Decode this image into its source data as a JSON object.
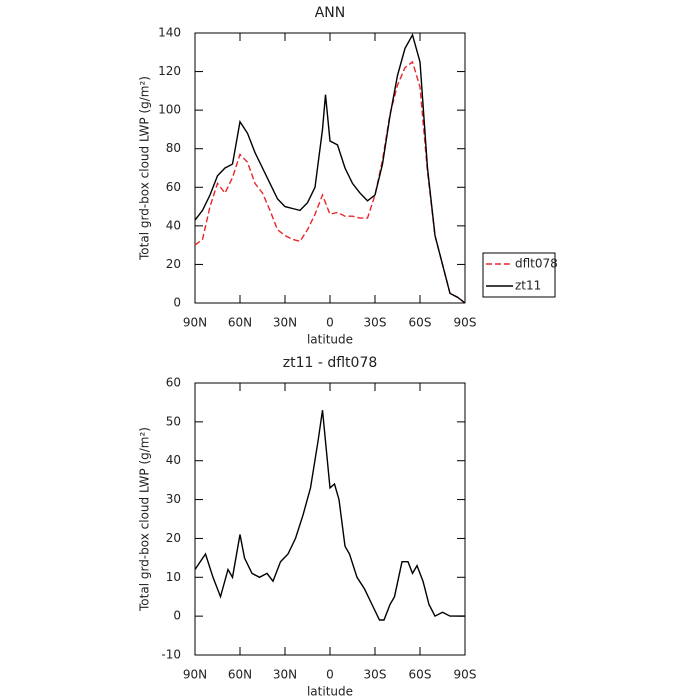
{
  "chart_data": [
    {
      "type": "line",
      "title": "ANN",
      "xlabel": "latitude",
      "ylabel": "Total grd-box cloud LWP (g/m²)",
      "x": [
        90,
        85,
        80,
        75,
        70,
        65,
        60,
        55,
        50,
        45,
        40,
        35,
        30,
        25,
        20,
        15,
        10,
        5,
        3,
        0,
        -5,
        -10,
        -15,
        -20,
        -25,
        -30,
        -35,
        -40,
        -45,
        -50,
        -55,
        -60,
        -65,
        -70,
        -75,
        -80,
        -85,
        -90
      ],
      "series": [
        {
          "name": "dflt078",
          "color": "#e8262a",
          "linestyle": "dashed",
          "values": [
            30,
            33,
            50,
            62,
            57,
            65,
            77,
            73,
            62,
            57,
            48,
            38,
            35,
            33,
            32,
            38,
            46,
            56,
            52,
            46,
            47,
            45,
            45,
            44,
            44,
            56,
            74,
            98,
            113,
            122,
            125,
            112,
            68,
            35,
            20,
            5,
            3,
            0
          ]
        },
        {
          "name": "zt11",
          "color": "#000000",
          "linestyle": "solid",
          "values": [
            43,
            48,
            56,
            66,
            70,
            72,
            94,
            88,
            78,
            70,
            62,
            54,
            50,
            49,
            48,
            52,
            60,
            90,
            108,
            84,
            82,
            70,
            62,
            57,
            53,
            56,
            72,
            97,
            118,
            132,
            139,
            125,
            70,
            35,
            20,
            5,
            3,
            0
          ]
        }
      ],
      "xlim": [
        90,
        -90
      ],
      "xticks": [
        {
          "value": 90,
          "label": "90N"
        },
        {
          "value": 60,
          "label": "60N"
        },
        {
          "value": 30,
          "label": "30N"
        },
        0,
        {
          "value": -30,
          "label": "30S"
        },
        {
          "value": -60,
          "label": "60S"
        },
        {
          "value": -90,
          "label": "90S"
        }
      ],
      "ylim": [
        0,
        140
      ],
      "yticks": [
        0,
        20,
        40,
        60,
        80,
        100,
        120,
        140
      ],
      "legend": "right"
    },
    {
      "type": "line",
      "title": "zt11 - dflt078",
      "xlabel": "latitude",
      "ylabel": "Total grd-box cloud LWP (g/m²)",
      "x": [
        90,
        83,
        78,
        73,
        68,
        65,
        60,
        57,
        52,
        47,
        42,
        38,
        33,
        28,
        23,
        18,
        13,
        8,
        5,
        3,
        0,
        -3,
        -6,
        -10,
        -13,
        -18,
        -23,
        -28,
        -33,
        -36,
        -40,
        -43,
        -48,
        -52,
        -55,
        -58,
        -62,
        -66,
        -70,
        -75,
        -80,
        -85,
        -90
      ],
      "series": [
        {
          "color": "#000000",
          "linestyle": "solid",
          "values": [
            12,
            16,
            10,
            5,
            12,
            10,
            21,
            15,
            11,
            10,
            11,
            9,
            14,
            16,
            20,
            26,
            33,
            45,
            53,
            45,
            33,
            34,
            30,
            18,
            16,
            10,
            7,
            3,
            -1,
            -1,
            3,
            5,
            14,
            14,
            11,
            13,
            9,
            3,
            0,
            1,
            0,
            0,
            0
          ]
        }
      ],
      "xlim": [
        90,
        -90
      ],
      "xticks": [
        {
          "value": 90,
          "label": "90N"
        },
        {
          "value": 60,
          "label": "60N"
        },
        {
          "value": 30,
          "label": "30N"
        },
        0,
        {
          "value": -30,
          "label": "30S"
        },
        {
          "value": -60,
          "label": "60S"
        },
        {
          "value": -90,
          "label": "90S"
        }
      ],
      "ylim": [
        -10,
        60
      ],
      "yticks": [
        -10,
        0,
        10,
        20,
        30,
        40,
        50,
        60
      ]
    }
  ]
}
